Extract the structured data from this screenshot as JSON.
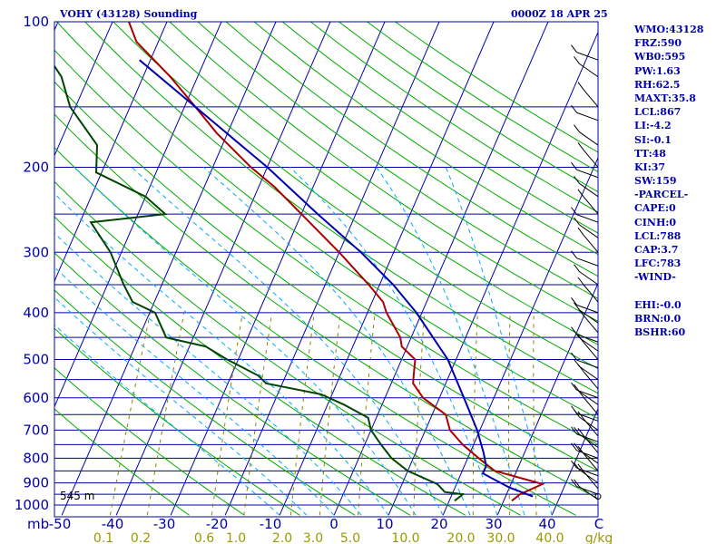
{
  "header": {
    "station": "VOHY (43128) Sounding",
    "time": "0000Z 18 APR 25"
  },
  "panel": {
    "lines": [
      "WMO:43128",
      "FRZ:590",
      "WB0:595",
      "PW:1.63",
      "RH:62.5",
      "MAXT:35.8",
      "LCL:867",
      "LI:-4.2",
      "SI:-0.1",
      "TT:48",
      "KI:37",
      "SW:159",
      "-PARCEL-",
      "CAPE:0",
      "CINH:0",
      "LCL:788",
      "CAP:3.7",
      "LFC:783",
      "-WIND-",
      "",
      "EHI:-0.0",
      "BRN:0.0",
      "BSHR:60"
    ]
  },
  "chart_data": {
    "type": "line",
    "title": "VOHY (43128) Sounding",
    "diagram": "skew-T log-p",
    "pressure_axis": {
      "unit": "mb",
      "range": [
        1000,
        100
      ],
      "scale": "log",
      "labels": [
        {
          "p": 100,
          "text": "100"
        },
        {
          "p": 200,
          "text": "200"
        },
        {
          "p": 300,
          "text": "300"
        },
        {
          "p": 400,
          "text": "400"
        },
        {
          "p": 500,
          "text": "500"
        },
        {
          "p": 600,
          "text": "600"
        },
        {
          "p": 700,
          "text": "700"
        },
        {
          "p": 800,
          "text": "800"
        },
        {
          "p": 900,
          "text": "900"
        },
        {
          "p": 1000,
          "text": "1000"
        }
      ]
    },
    "temperature_axis": {
      "unit": "C",
      "range": [
        -50,
        50
      ],
      "labels": [
        {
          "t": -50,
          "text": "-50"
        },
        {
          "t": -40,
          "text": "-40"
        },
        {
          "t": -30,
          "text": "-30"
        },
        {
          "t": -20,
          "text": "-20"
        },
        {
          "t": -10,
          "text": "-10"
        },
        {
          "t": 0,
          "text": "0"
        },
        {
          "t": 10,
          "text": "10"
        },
        {
          "t": 20,
          "text": "20"
        },
        {
          "t": 30,
          "text": "30"
        },
        {
          "t": 40,
          "text": "40"
        },
        {
          "t": 50,
          "text": "C"
        }
      ]
    },
    "mixing_ratio_axis": {
      "unit": "g/kg",
      "labels": [
        "0.1",
        "0.2",
        "0.6",
        "1.0",
        "2.0",
        "3.0",
        "5.0",
        "10.0",
        "20.0",
        "30.0",
        "40.0"
      ],
      "unit_label": "g/kg"
    },
    "series": [
      {
        "name": "temperature",
        "color": "#aa0000",
        "points": [
          {
            "p": 980,
            "t": 31.5
          },
          {
            "p": 950,
            "t": 32.5
          },
          {
            "p": 905,
            "t": 35.8
          },
          {
            "p": 850,
            "t": 26.0
          },
          {
            "p": 800,
            "t": 22.0
          },
          {
            "p": 750,
            "t": 18.0
          },
          {
            "p": 700,
            "t": 14.5
          },
          {
            "p": 650,
            "t": 12.5
          },
          {
            "p": 600,
            "t": 7.0
          },
          {
            "p": 560,
            "t": 4.0
          },
          {
            "p": 540,
            "t": 3.5
          },
          {
            "p": 500,
            "t": 2.5
          },
          {
            "p": 470,
            "t": -1.0
          },
          {
            "p": 450,
            "t": -2.0
          },
          {
            "p": 400,
            "t": -6.5
          },
          {
            "p": 380,
            "t": -8.0
          },
          {
            "p": 350,
            "t": -12.0
          },
          {
            "p": 300,
            "t": -20.0
          },
          {
            "p": 250,
            "t": -30.0
          },
          {
            "p": 220,
            "t": -37.0
          },
          {
            "p": 200,
            "t": -43.0
          },
          {
            "p": 170,
            "t": -52.0
          },
          {
            "p": 150,
            "t": -58.0
          },
          {
            "p": 130,
            "t": -65.0
          },
          {
            "p": 110,
            "t": -74.0
          },
          {
            "p": 100,
            "t": -77.0
          }
        ]
      },
      {
        "name": "dewpoint",
        "color": "#004400",
        "points": [
          {
            "p": 980,
            "t": 21.0
          },
          {
            "p": 950,
            "t": 22.0
          },
          {
            "p": 940,
            "t": 18.5
          },
          {
            "p": 905,
            "t": 16.5
          },
          {
            "p": 850,
            "t": 10.0
          },
          {
            "p": 800,
            "t": 6.0
          },
          {
            "p": 750,
            "t": 3.0
          },
          {
            "p": 700,
            "t": 0.0
          },
          {
            "p": 660,
            "t": -1.5
          },
          {
            "p": 620,
            "t": -7.0
          },
          {
            "p": 590,
            "t": -12.0
          },
          {
            "p": 560,
            "t": -23.0
          },
          {
            "p": 540,
            "t": -25.0
          },
          {
            "p": 500,
            "t": -32.0
          },
          {
            "p": 470,
            "t": -37.0
          },
          {
            "p": 450,
            "t": -45.0
          },
          {
            "p": 400,
            "t": -49.0
          },
          {
            "p": 380,
            "t": -54.0
          },
          {
            "p": 350,
            "t": -57.0
          },
          {
            "p": 300,
            "t": -62.0
          },
          {
            "p": 260,
            "t": -68.0
          },
          {
            "p": 250,
            "t": -55.0
          },
          {
            "p": 230,
            "t": -60.0
          },
          {
            "p": 205,
            "t": -71.0
          },
          {
            "p": 180,
            "t": -73.0
          },
          {
            "p": 150,
            "t": -81.0
          },
          {
            "p": 130,
            "t": -85.0
          },
          {
            "p": 100,
            "t": -96.0
          }
        ]
      },
      {
        "name": "parcel",
        "color": "#0000aa",
        "points": [
          {
            "p": 960,
            "t": 35.0
          },
          {
            "p": 920,
            "t": 30.0
          },
          {
            "p": 880,
            "t": 26.0
          },
          {
            "p": 860,
            "t": 24.0
          },
          {
            "p": 830,
            "t": 24.0
          },
          {
            "p": 780,
            "t": 22.5
          },
          {
            "p": 700,
            "t": 19.5
          },
          {
            "p": 600,
            "t": 14.5
          },
          {
            "p": 500,
            "t": 8.5
          },
          {
            "p": 400,
            "t": -1.0
          },
          {
            "p": 350,
            "t": -7.5
          },
          {
            "p": 300,
            "t": -16.0
          },
          {
            "p": 250,
            "t": -27.0
          },
          {
            "p": 200,
            "t": -40.0
          },
          {
            "p": 150,
            "t": -58.0
          },
          {
            "p": 120,
            "t": -72.0
          }
        ]
      }
    ],
    "surface_height_label": "545 m",
    "grid": true
  }
}
